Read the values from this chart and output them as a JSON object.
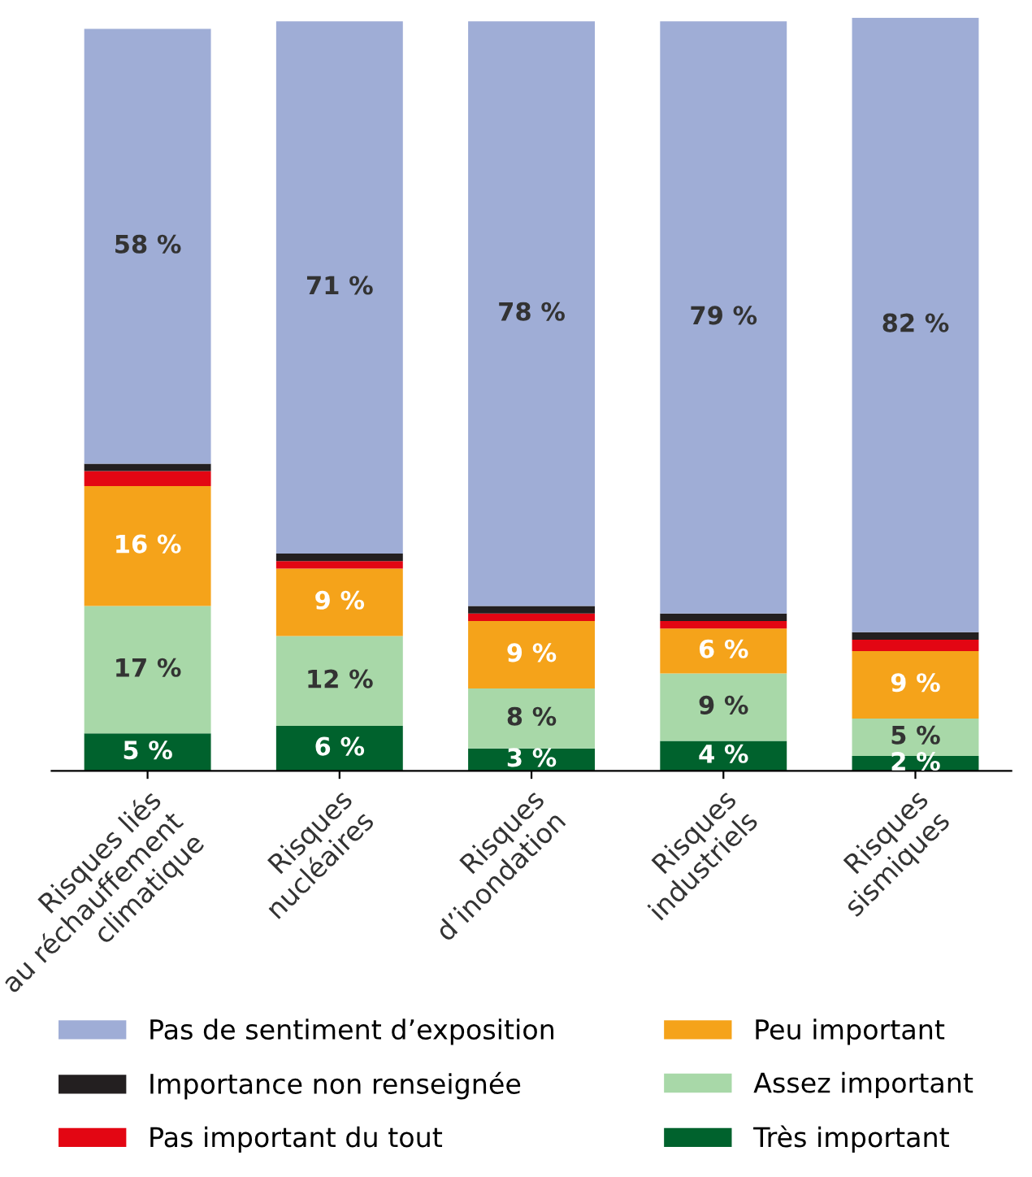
{
  "chart_data": {
    "type": "bar",
    "stacked": true,
    "legend": "bottom",
    "categories": [
      "Risques liés\nau réchauffement\nclimatique",
      "Risques\nnucléaires",
      "Risques\nd’inondation",
      "Risques\nindustriels",
      "Risques\nsismiques"
    ],
    "series": [
      {
        "name": "Très important",
        "color": "#00622d",
        "values": [
          5,
          6,
          3,
          4,
          2
        ],
        "value_labels": [
          "5 %",
          "6 %",
          "3 %",
          "4 %",
          "2 %"
        ]
      },
      {
        "name": "Assez important",
        "color": "#a8d8a8",
        "values": [
          17,
          12,
          8,
          9,
          5
        ],
        "value_labels": [
          "17 %",
          "12 %",
          "8 %",
          "9 %",
          "5 %"
        ]
      },
      {
        "name": "Peu important",
        "color": "#f5a31a",
        "values": [
          16,
          9,
          9,
          6,
          9
        ],
        "value_labels": [
          "16 %",
          "9 %",
          "9 %",
          "6 %",
          "9 %"
        ]
      },
      {
        "name": "Pas important du tout",
        "color": "#e30613",
        "values": [
          2,
          1,
          1,
          1,
          1.5
        ]
      },
      {
        "name": "Importance non renseignée",
        "color": "#231f20",
        "values": [
          1,
          1,
          1,
          1,
          1
        ]
      },
      {
        "name": "Pas de sentiment d’exposition",
        "color": "#9fadd6",
        "values": [
          58,
          71,
          78,
          79,
          82
        ],
        "value_labels": [
          "58 %",
          "71 %",
          "78 %",
          "79 %",
          "82 %"
        ]
      }
    ]
  }
}
